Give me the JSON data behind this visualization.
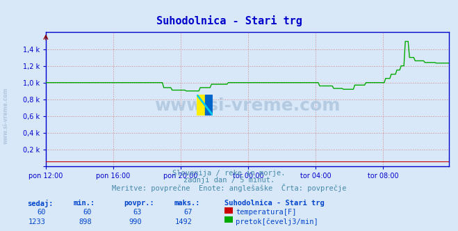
{
  "title": "Suhodolnica - Stari trg",
  "subtitle1": "Slovenija / reke in morje.",
  "subtitle2": "zadnji dan / 5 minut.",
  "subtitle3": "Meritve: povprečne  Enote: anglešaške  Črta: povprečje",
  "bg_color": "#d8e8f8",
  "plot_bg_color": "#d8e8f8",
  "title_color": "#0000cc",
  "subtitle_color": "#4488aa",
  "axis_color": "#0000cc",
  "grid_color_major": "#cc8888",
  "tick_label_color": "#0000cc",
  "watermark_color": "#b0c8e0",
  "ymin": 0,
  "ymax": 1600,
  "yticks": [
    0,
    200,
    400,
    600,
    800,
    1000,
    1200,
    1400
  ],
  "ytick_labels": [
    "",
    "0,2 k",
    "0,4 k",
    "0,6 k",
    "0,8 k",
    "1,0 k",
    "1,2 k",
    "1,4 k"
  ],
  "n_points": 288,
  "temp_color": "#cc0000",
  "flow_color": "#00aa00",
  "temp_sedaj": 60,
  "temp_min": 60,
  "temp_povpr": 63,
  "temp_maks": 67,
  "flow_sedaj": 1233,
  "flow_min": 898,
  "flow_povpr": 990,
  "flow_maks": 1492,
  "legend_title": "Suhodolnica - Stari trg",
  "legend_items": [
    "temperatura[F]",
    "pretok[čevelj3/min]"
  ],
  "legend_colors": [
    "#cc0000",
    "#00aa00"
  ],
  "table_headers": [
    "sedaj:",
    "min.:",
    "povpr.:",
    "maks.:"
  ],
  "table_color": "#0044cc"
}
